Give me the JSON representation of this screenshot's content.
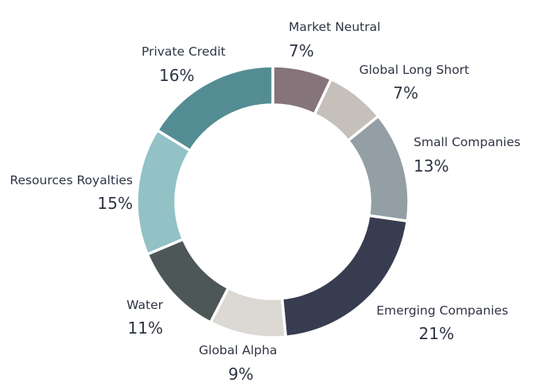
{
  "chart_data": {
    "type": "pie",
    "variant": "donut",
    "start_angle_deg": 0,
    "direction": "clockwise",
    "slice_separator_color": "#ffffff",
    "slices": [
      {
        "label": "Market Neutral",
        "value": 7,
        "value_label": "7%",
        "color": "#857479"
      },
      {
        "label": "Global Long Short",
        "value": 7,
        "value_label": "7%",
        "color": "#c5c0b9"
      },
      {
        "label": "Small Companies",
        "value": 13,
        "value_label": "13%",
        "color": "#939fa4"
      },
      {
        "label": "Emerging Companies",
        "value": 21,
        "value_label": "21%",
        "color": "#383c50"
      },
      {
        "label": "Global Alpha",
        "value": 9,
        "value_label": "9%",
        "color": "#dcd8d4"
      },
      {
        "label": "Water",
        "value": 11,
        "value_label": "11%",
        "color": "#4e5758"
      },
      {
        "label": "Resources Royalties",
        "value": 15,
        "value_label": "15%",
        "color": "#92c1c6"
      },
      {
        "label": "Private Credit",
        "value": 16,
        "value_label": "16%",
        "color": "#538d93"
      }
    ]
  }
}
